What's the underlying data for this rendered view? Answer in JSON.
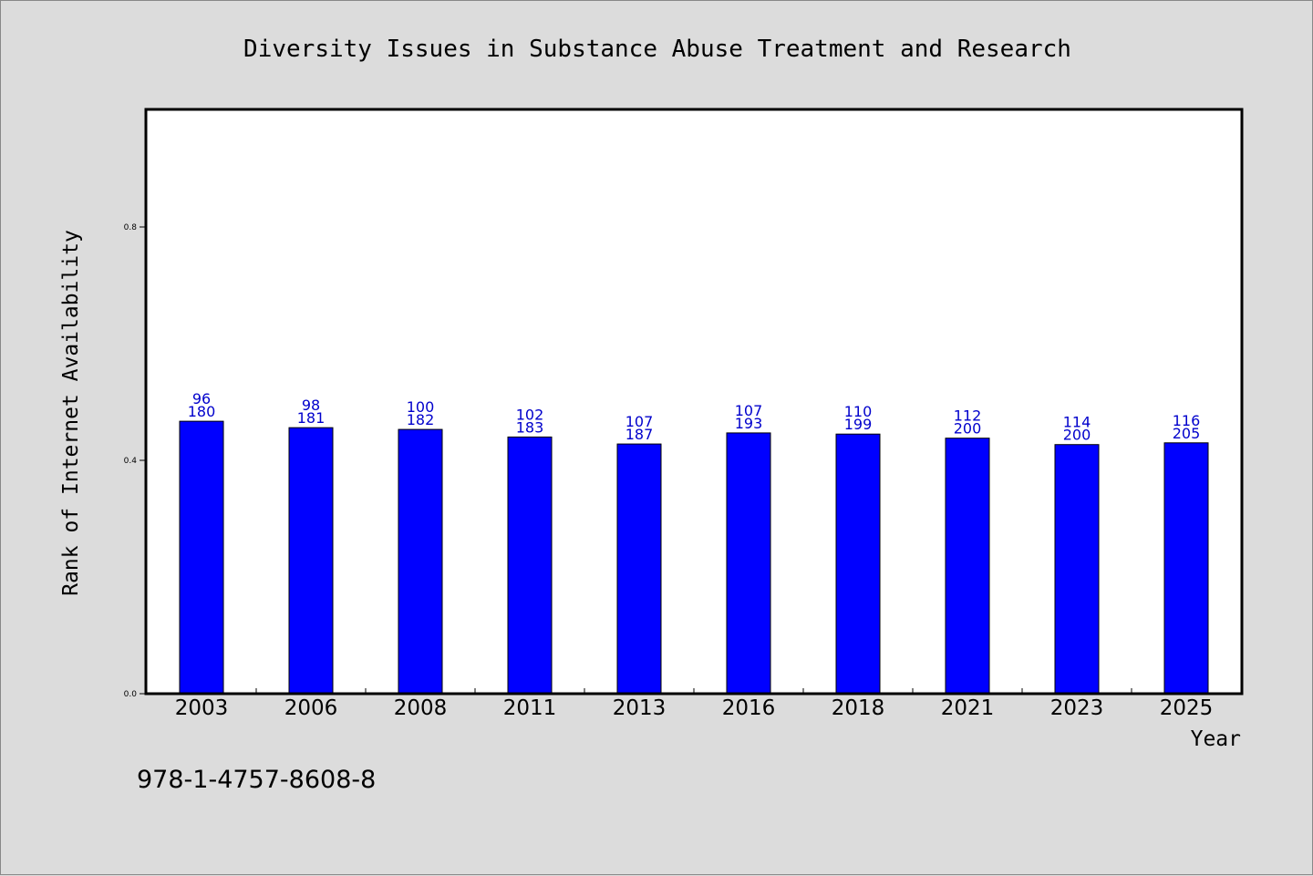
{
  "chart_data": {
    "type": "bar",
    "title": "Diversity Issues in Substance Abuse Treatment and Research",
    "xlabel": "Year",
    "ylabel": "Rank of Internet Availability",
    "categories": [
      "2003",
      "2006",
      "2008",
      "2011",
      "2013",
      "2016",
      "2018",
      "2021",
      "2023",
      "2025"
    ],
    "values": [
      0.467,
      0.456,
      0.453,
      0.44,
      0.428,
      0.447,
      0.445,
      0.438,
      0.427,
      0.43
    ],
    "bar_labels": [
      [
        "96",
        "180"
      ],
      [
        "98",
        "181"
      ],
      [
        "100",
        "182"
      ],
      [
        "102",
        "183"
      ],
      [
        "107",
        "187"
      ],
      [
        "107",
        "193"
      ],
      [
        "110",
        "199"
      ],
      [
        "112",
        "200"
      ],
      [
        "114",
        "200"
      ],
      [
        "116",
        "205"
      ]
    ],
    "yticks": [
      "0.0",
      "0.4",
      "0.8"
    ],
    "ylim": [
      0,
      1.0
    ],
    "grid": false,
    "legend": "none",
    "colors": {
      "bar": "#0000ff",
      "label": "#0000cc",
      "background": "#dcdcdc",
      "plot_background": "#ffffff"
    }
  },
  "footer_text": "978-1-4757-8608-8"
}
